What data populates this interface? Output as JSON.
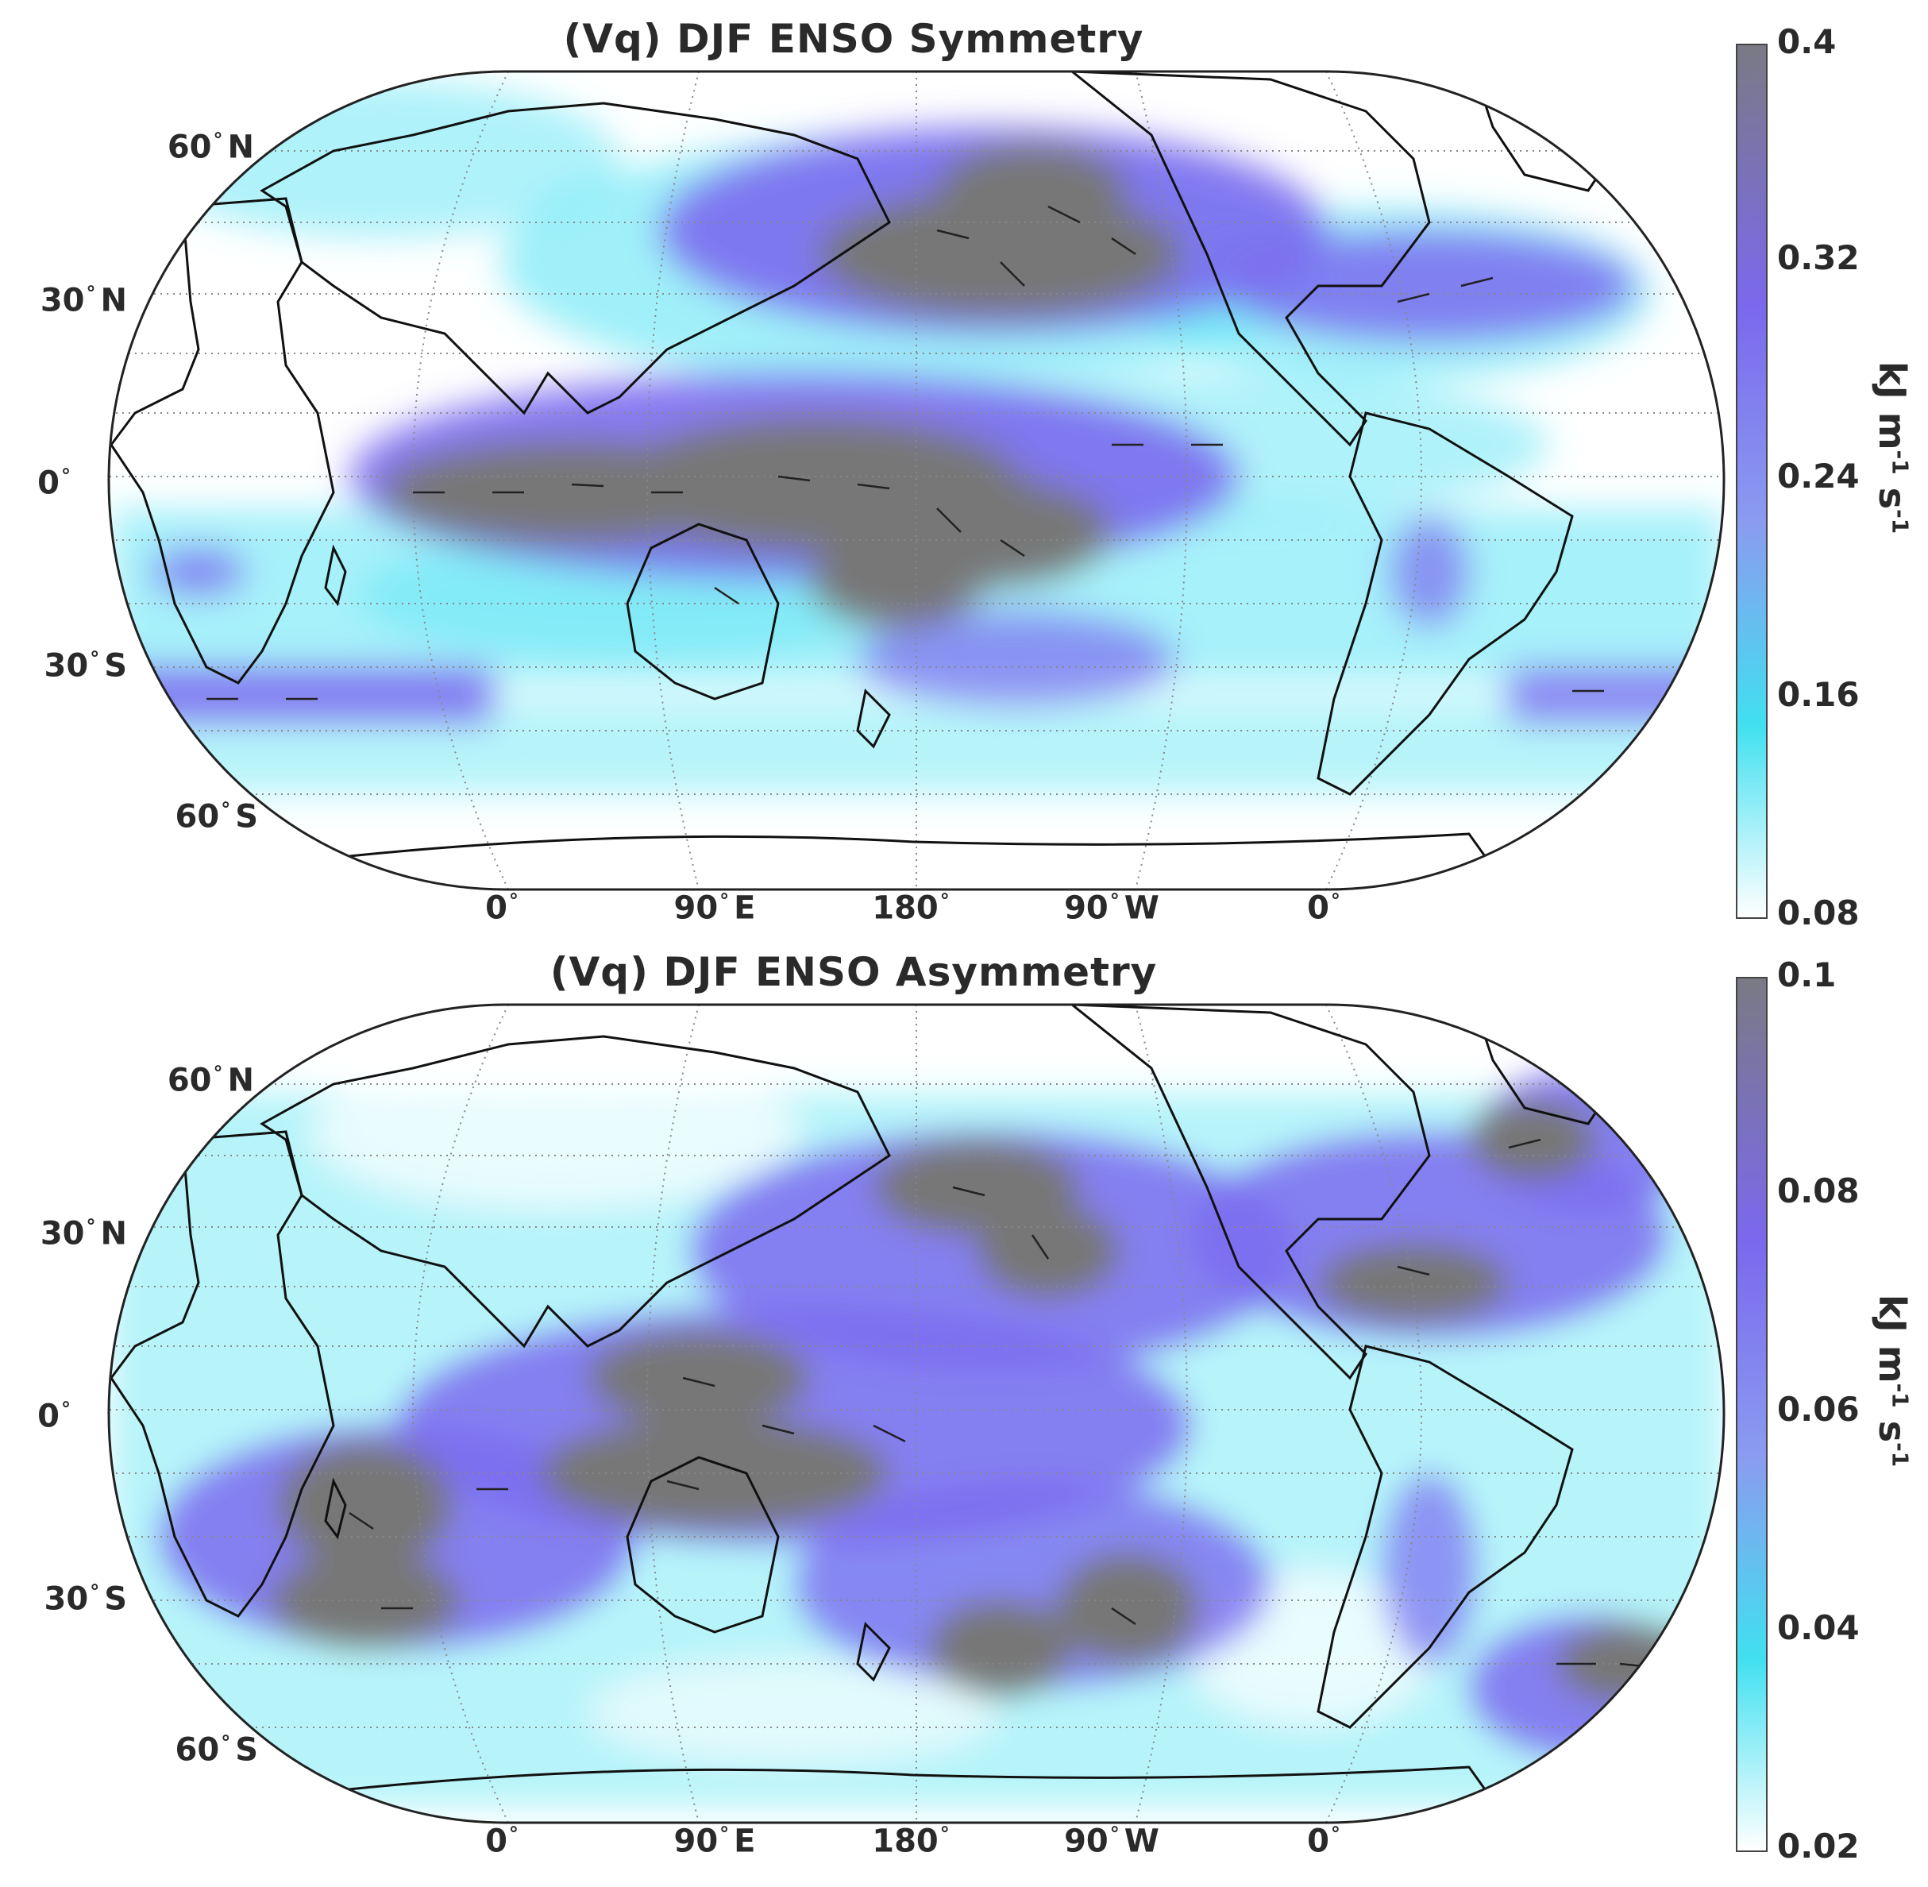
{
  "panels": [
    {
      "title": "(Vq) DJF ENSO Symmetry",
      "lat_labels": [
        "60",
        "30",
        "0",
        "30",
        "60"
      ],
      "lat_hemi": [
        "N",
        "N",
        "",
        "S",
        "S"
      ],
      "lon_labels": [
        "0",
        "90",
        "180",
        "90",
        "0"
      ],
      "lon_hemi": [
        "",
        "E",
        "",
        "W",
        ""
      ],
      "colorbar": {
        "ticks": [
          "0.4",
          "0.32",
          "0.24",
          "0.16",
          "0.08"
        ],
        "unit_base": "kJ m",
        "unit_exp1": "-1",
        "unit_mid": " s",
        "unit_exp2": "-1",
        "colors": [
          "#7a7a84",
          "#7b68ee",
          "#8a9cf0",
          "#40e0f0",
          "#ffffff"
        ]
      }
    },
    {
      "title": "(Vq) DJF ENSO Asymmetry",
      "lat_labels": [
        "60",
        "30",
        "0",
        "30",
        "60"
      ],
      "lat_hemi": [
        "N",
        "N",
        "",
        "S",
        "S"
      ],
      "lon_labels": [
        "0",
        "90",
        "180",
        "90",
        "0"
      ],
      "lon_hemi": [
        "",
        "E",
        "",
        "W",
        ""
      ],
      "colorbar": {
        "ticks": [
          "0.1",
          "0.08",
          "0.06",
          "0.04",
          "0.02"
        ],
        "unit_base": "kJ m",
        "unit_exp1": "-1",
        "unit_mid": " s",
        "unit_exp2": "-1",
        "colors": [
          "#7a7a84",
          "#7b68ee",
          "#8a9cf0",
          "#40e0f0",
          "#ffffff"
        ]
      }
    }
  ],
  "colors": {
    "land_outline": "#111111",
    "gridline": "#888888",
    "high": "#777777",
    "mid": "#7b6cf0",
    "low": "#5fe6f5"
  }
}
